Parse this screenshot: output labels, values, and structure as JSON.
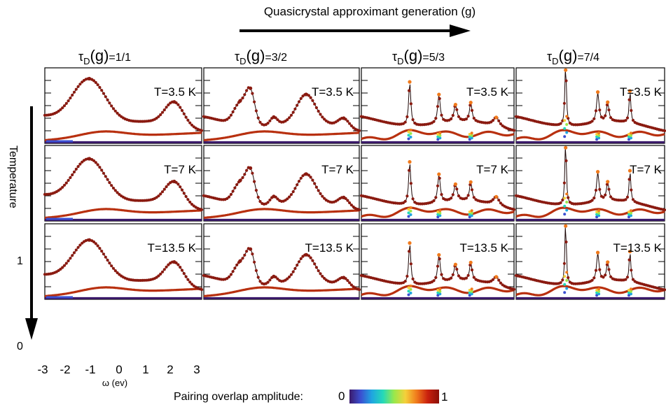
{
  "header": {
    "generation_label": "Quasicrystal approximant generation (g)",
    "temperature_label": "Temperature",
    "column_titles": [
      {
        "prefix": "τ",
        "sub": "D",
        "mid": "(g)",
        "value": "=1/1"
      },
      {
        "prefix": "τ",
        "sub": "D",
        "mid": "(g)",
        "value": "=3/2"
      },
      {
        "prefix": "τ",
        "sub": "D",
        "mid": "(g)",
        "value": "=5/3"
      },
      {
        "prefix": "τ",
        "sub": "D",
        "mid": "(g)",
        "value": "=7/4"
      }
    ],
    "row_labels": [
      "T=3.5 K",
      "T=7 K",
      "T=13.5 K"
    ]
  },
  "axes": {
    "x_ticks": [
      "-3",
      "-2",
      "-1",
      "0",
      "1",
      "2",
      "3"
    ],
    "x_label": "ω (ev)",
    "y_ticks": [
      "1",
      "0"
    ]
  },
  "colorbar": {
    "label": "Pairing overlap amplitude:",
    "min_label": "0",
    "max_label": "1",
    "colors": [
      "#3b1a6b",
      "#3b4fd1",
      "#1fa6e0",
      "#25d9b8",
      "#9be84a",
      "#f5d03a",
      "#f07a1c",
      "#c9200e",
      "#8a0f07"
    ]
  },
  "chart_data": {
    "type": "line",
    "x_range": [
      -3,
      3
    ],
    "y_range": [
      0,
      1
    ],
    "layout": "3 rows (temperature) × 4 columns (generation)",
    "rows": [
      "T=3.5 K",
      "T=7 K",
      "T=13.5 K"
    ],
    "columns": [
      "τD(g)=1/1",
      "τD(g)=3/2",
      "τD(g)=5/3",
      "τD(g)=7/4"
    ],
    "series_per_panel": [
      {
        "role": "normal-state spectrum",
        "color": "#8a1a10"
      },
      {
        "role": "pairing spectrum",
        "color": "#b8300f"
      },
      {
        "role": "baseline",
        "color": "#3b1a6b"
      }
    ],
    "column_peaks": [
      [
        {
          "x": -1.3,
          "h": 0.62,
          "w": 0.9
        },
        {
          "x": 1.95,
          "h": 0.3,
          "w": 0.5
        }
      ],
      [
        {
          "x": -1.6,
          "h": 0.28,
          "w": 0.35
        },
        {
          "x": -1.2,
          "h": 0.42,
          "w": 0.25
        },
        {
          "x": -0.3,
          "h": 0.1,
          "w": 0.2
        },
        {
          "x": 0.95,
          "h": 0.36,
          "w": 0.5
        },
        {
          "x": 2.4,
          "h": 0.12,
          "w": 0.3
        }
      ],
      [
        {
          "x": -1.1,
          "h": 0.58,
          "w": 0.1
        },
        {
          "x": 0.05,
          "h": 0.38,
          "w": 0.12
        },
        {
          "x": 0.7,
          "h": 0.22,
          "w": 0.15
        },
        {
          "x": 1.3,
          "h": 0.25,
          "w": 0.12
        },
        {
          "x": 2.3,
          "h": 0.12,
          "w": 0.3
        }
      ],
      [
        {
          "x": -1.0,
          "h": 0.9,
          "w": 0.07
        },
        {
          "x": 0.3,
          "h": 0.4,
          "w": 0.12
        },
        {
          "x": 0.7,
          "h": 0.25,
          "w": 0.12
        },
        {
          "x": 1.6,
          "h": 0.42,
          "w": 0.08
        }
      ]
    ],
    "panel_colored_peak_x": [
      [],
      [],
      [
        -1.1,
        0.05,
        1.3
      ],
      [
        -1.0,
        0.3,
        1.6
      ]
    ],
    "row_base_level": [
      0.32,
      0.3,
      0.28
    ],
    "row_peak_scale": [
      1.0,
      0.98,
      0.95
    ]
  }
}
